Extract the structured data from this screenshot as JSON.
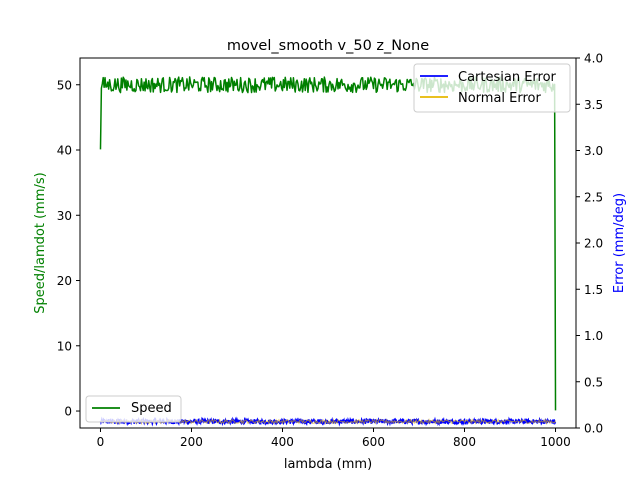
{
  "chart_data": {
    "type": "line",
    "title": "movel_smooth v_50 z_None",
    "xlabel": "lambda (mm)",
    "ylabel_left": "Speed/lamdot (mm/s)",
    "ylabel_right": "Error (mm/deg)",
    "xlim": [
      -45,
      1045
    ],
    "ylim_left": [
      -2.6,
      54.1
    ],
    "ylim_right": [
      0,
      4.0
    ],
    "xticks": [
      0,
      200,
      400,
      600,
      800,
      1000
    ],
    "yticks_left": [
      0,
      10,
      20,
      30,
      40,
      50
    ],
    "yticks_right": [
      0.0,
      0.5,
      1.0,
      1.5,
      2.0,
      2.5,
      3.0,
      3.5,
      4.0
    ],
    "grid": false,
    "colors": {
      "speed": "#008000",
      "cartesian_error": "#0000ff",
      "normal_error": "#e6b800",
      "ylabel_left": "#008000",
      "ylabel_right": "#0000ff"
    },
    "series": [
      {
        "name": "Speed",
        "axis": "left",
        "start": {
          "x": 0,
          "y": 40.1
        },
        "plateau_mean": 50.0,
        "plateau_noise": 1.2,
        "plateau_range": [
          2,
          998
        ],
        "end": {
          "x": 1000,
          "y": 0.1
        }
      },
      {
        "name": "Cartesian Error",
        "axis": "right",
        "mean": 0.07,
        "noise": 0.05,
        "range": [
          0,
          1000
        ]
      },
      {
        "name": "Normal Error",
        "axis": "right",
        "mean": 0.07,
        "noise": 0.04,
        "range": [
          0,
          1000
        ]
      }
    ],
    "legend_right": {
      "placement": "top-right",
      "entries": [
        "Cartesian Error",
        "Normal Error"
      ]
    },
    "legend_left": {
      "placement": "bottom-left",
      "entries": [
        "Speed"
      ]
    }
  }
}
